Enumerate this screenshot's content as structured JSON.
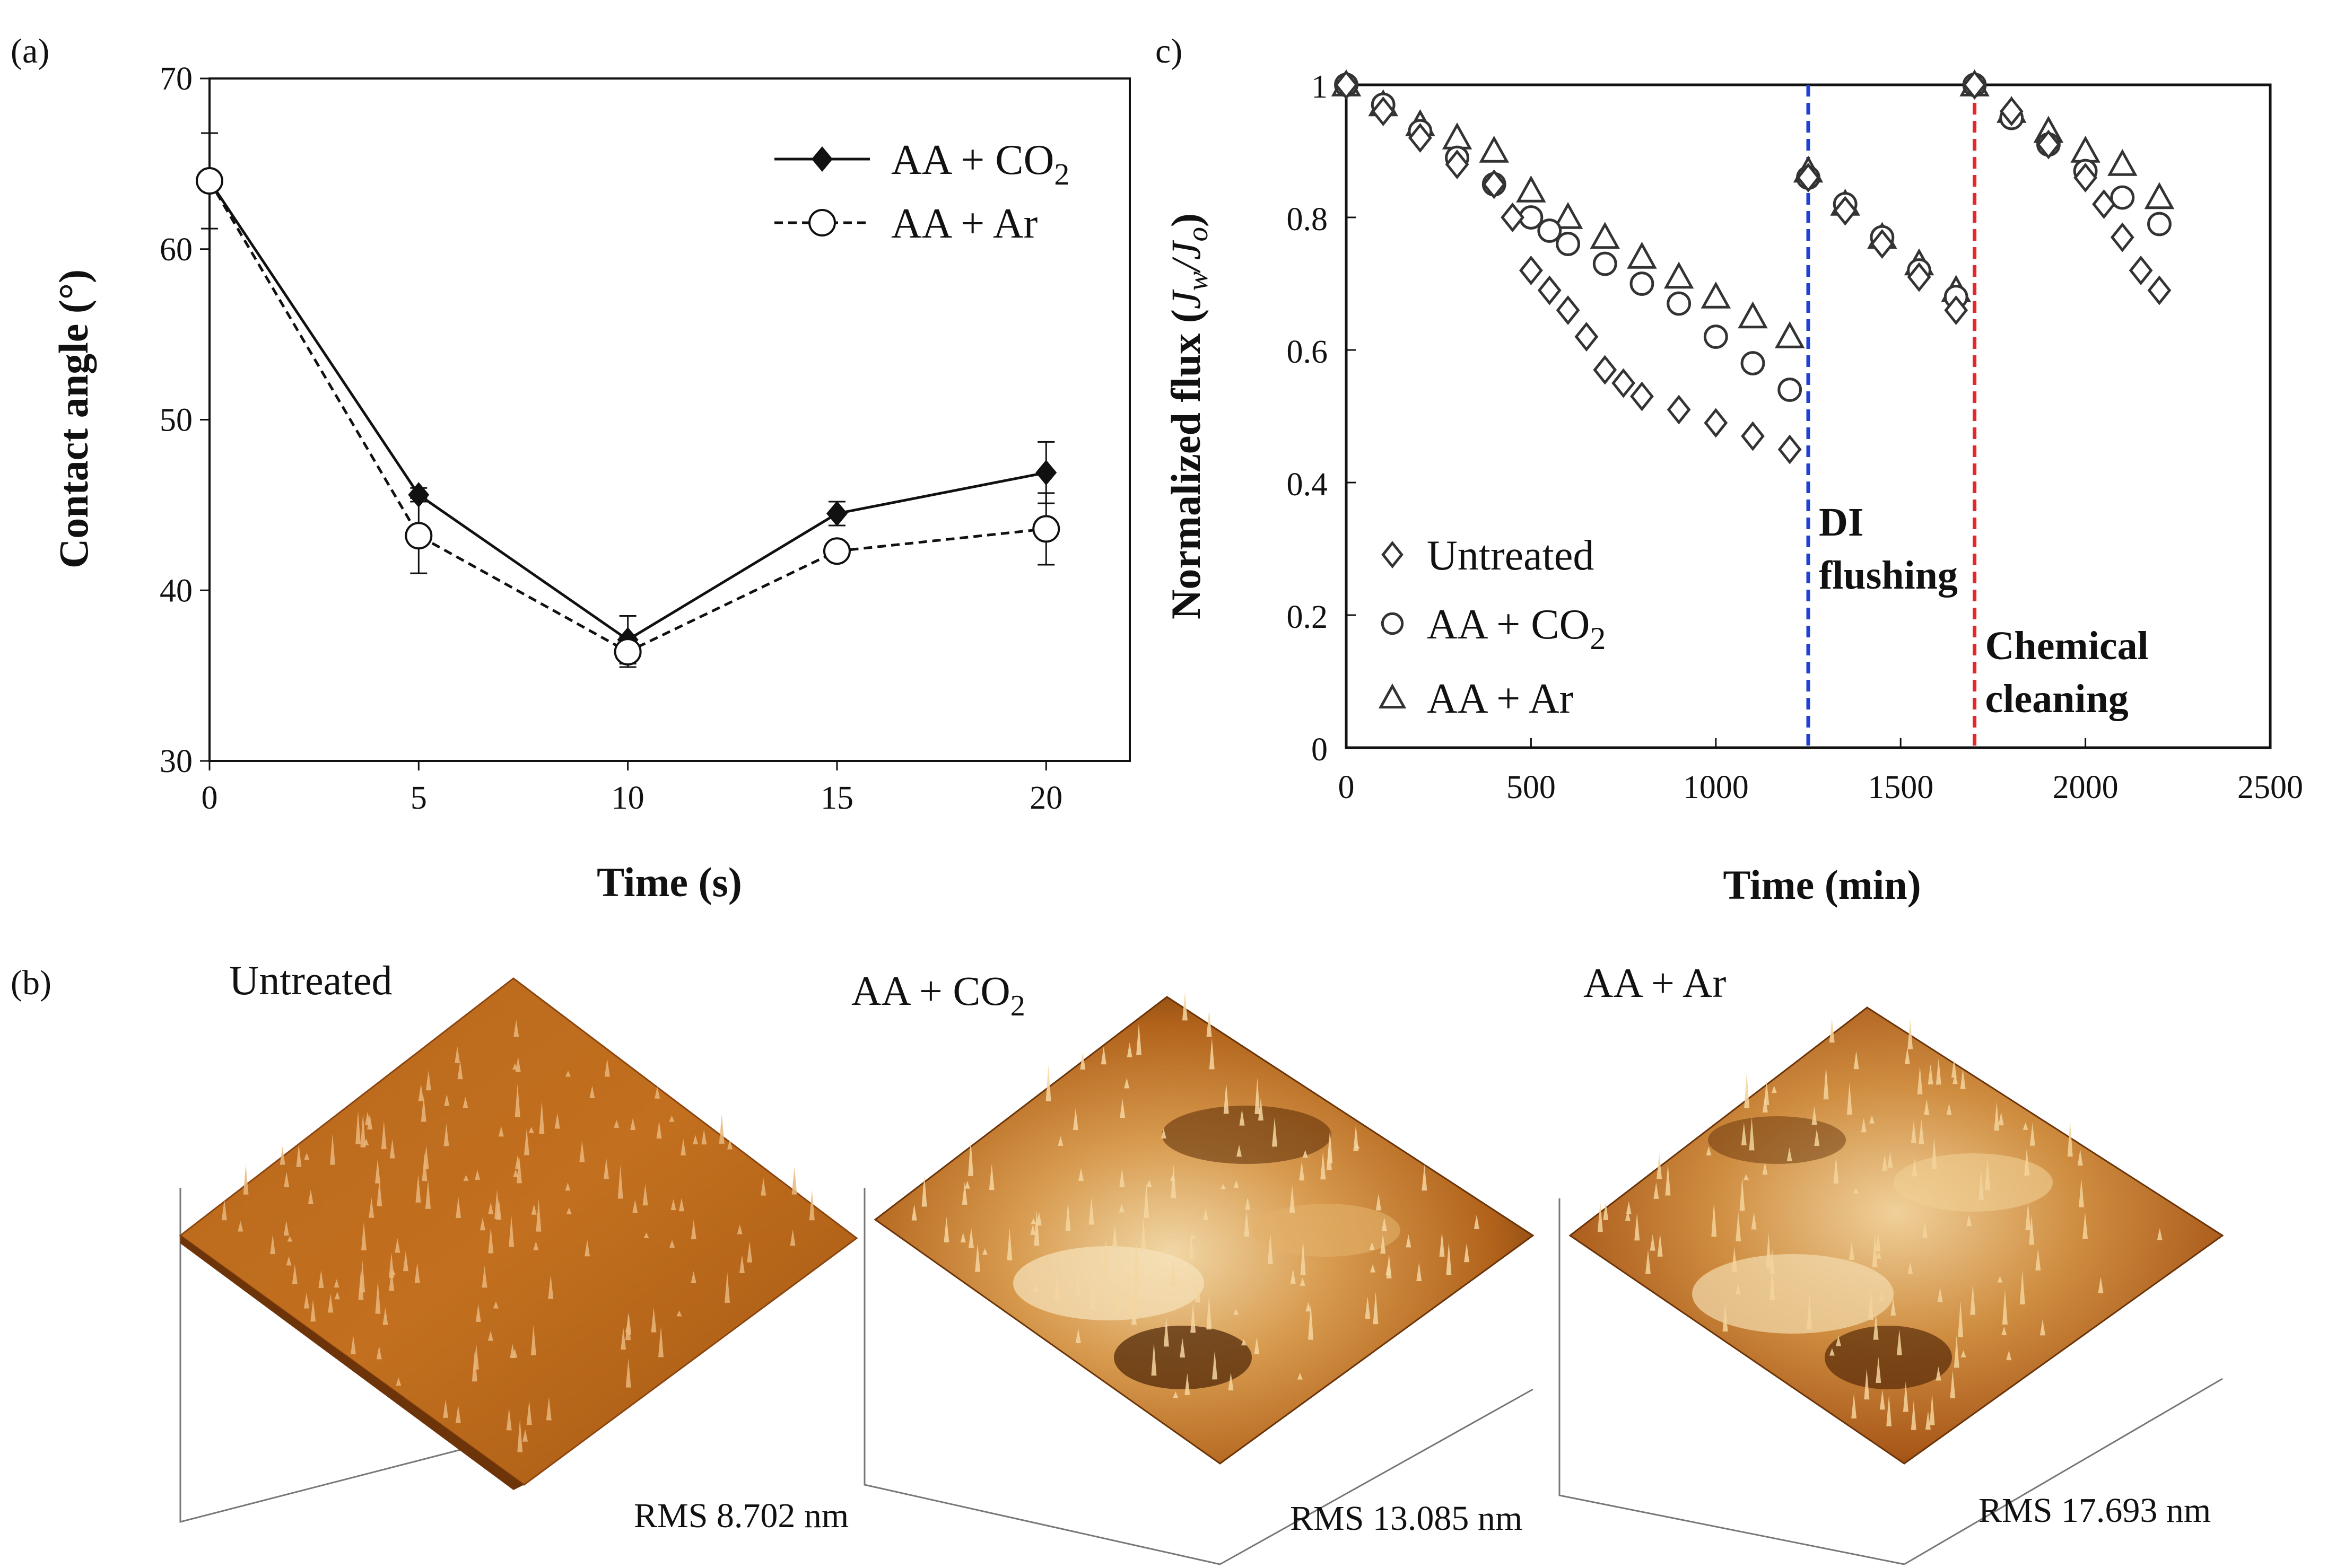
{
  "panels": {
    "a_label": "(a)",
    "b_label": "(b)",
    "c_label": "c)"
  },
  "chart_data": [
    {
      "id": "a",
      "type": "line",
      "title": "",
      "xlabel": "Time (s)",
      "ylabel": "Contact angle (°)",
      "xlim": [
        0,
        22
      ],
      "ylim": [
        30,
        70
      ],
      "xticks": [
        0,
        5,
        10,
        15,
        20
      ],
      "yticks": [
        30,
        40,
        50,
        60,
        70
      ],
      "legend_position": "top-right",
      "series": [
        {
          "name": "AA + CO2",
          "style": "solid-filled-diamond",
          "x": [
            0,
            5,
            10,
            15,
            20
          ],
          "y": [
            64.0,
            45.6,
            37.1,
            44.5,
            46.9
          ],
          "err": [
            2.8,
            0.4,
            1.4,
            0.7,
            1.8
          ]
        },
        {
          "name": "AA + Ar",
          "style": "dashed-open-circle",
          "x": [
            0,
            5,
            10,
            15,
            20
          ],
          "y": [
            64.0,
            43.2,
            36.4,
            42.3,
            43.6
          ],
          "err": [
            0.5,
            2.2,
            0.9,
            0.3,
            2.1
          ]
        }
      ]
    },
    {
      "id": "c",
      "type": "scatter",
      "title": "",
      "xlabel": "Time (min)",
      "ylabel": "Normalized flux (Jw/Jo)",
      "xlim": [
        0,
        2500
      ],
      "ylim": [
        0,
        1
      ],
      "xticks": [
        0,
        500,
        1000,
        1500,
        2000,
        2500
      ],
      "yticks": [
        0,
        0.2,
        0.4,
        0.6,
        0.8,
        1
      ],
      "legend_position": "bottom-left",
      "series": [
        {
          "name": "Untreated",
          "marker": "diamond",
          "x": [
            0,
            100,
            200,
            300,
            400,
            450,
            500,
            550,
            600,
            650,
            700,
            750,
            800,
            900,
            1000,
            1100,
            1200,
            1250,
            1350,
            1450,
            1550,
            1650,
            1700,
            1800,
            1900,
            2000,
            2050,
            2100,
            2150,
            2200
          ],
          "y": [
            1.0,
            0.96,
            0.92,
            0.88,
            0.85,
            0.8,
            0.72,
            0.69,
            0.66,
            0.62,
            0.57,
            0.55,
            0.53,
            0.51,
            0.49,
            0.47,
            0.45,
            0.86,
            0.81,
            0.76,
            0.71,
            0.66,
            1.0,
            0.96,
            0.91,
            0.86,
            0.82,
            0.77,
            0.72,
            0.69
          ]
        },
        {
          "name": "AA + CO2",
          "marker": "circle",
          "x": [
            0,
            100,
            200,
            300,
            400,
            500,
            550,
            600,
            700,
            800,
            900,
            1000,
            1100,
            1200,
            1250,
            1350,
            1450,
            1550,
            1650,
            1700,
            1800,
            1900,
            2000,
            2100,
            2200
          ],
          "y": [
            1.0,
            0.97,
            0.93,
            0.89,
            0.85,
            0.8,
            0.78,
            0.76,
            0.73,
            0.7,
            0.67,
            0.62,
            0.58,
            0.54,
            0.86,
            0.82,
            0.77,
            0.72,
            0.68,
            1.0,
            0.95,
            0.91,
            0.87,
            0.83,
            0.79
          ]
        },
        {
          "name": "AA + Ar",
          "marker": "triangle",
          "x": [
            0,
            100,
            200,
            300,
            400,
            500,
            600,
            700,
            800,
            900,
            1000,
            1100,
            1200,
            1250,
            1350,
            1450,
            1550,
            1650,
            1700,
            1800,
            1900,
            2000,
            2100,
            2200
          ],
          "y": [
            1.0,
            0.97,
            0.94,
            0.92,
            0.9,
            0.84,
            0.8,
            0.77,
            0.74,
            0.71,
            0.68,
            0.65,
            0.62,
            0.87,
            0.82,
            0.77,
            0.73,
            0.69,
            1.0,
            0.96,
            0.93,
            0.9,
            0.88,
            0.83
          ]
        }
      ],
      "vlines": [
        {
          "x": 1250,
          "color": "#1f3fd6",
          "label_line1": "DI",
          "label_line2": "flushing"
        },
        {
          "x": 1700,
          "color": "#e8262a",
          "label_line1": "Chemical",
          "label_line2": "cleaning"
        }
      ]
    }
  ],
  "afm": {
    "items": [
      {
        "title": "Untreated",
        "rms": "RMS 8.702 nm"
      },
      {
        "title_main": "AA + CO",
        "title_sub": "2",
        "rms": "RMS 13.085 nm"
      },
      {
        "title": "AA + Ar",
        "rms": "RMS 17.693 nm"
      }
    ]
  },
  "colors": {
    "afm_dark": "#5a2a05",
    "afm_mid": "#b8661b",
    "afm_light": "#f1d7a6"
  }
}
